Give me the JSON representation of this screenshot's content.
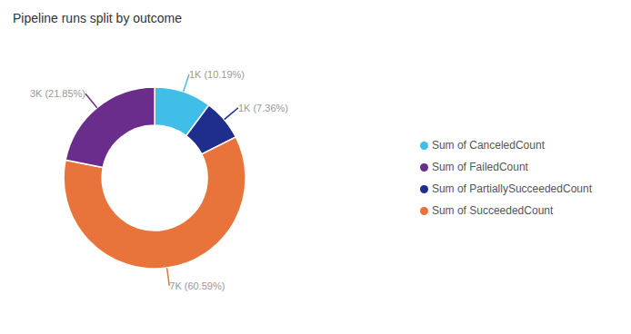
{
  "chart_data": {
    "type": "donut",
    "title": "Pipeline runs split by outcome",
    "categories": [
      "Sum of CanceledCount",
      "Sum of PartiallySucceededCount",
      "Sum of SucceededCount",
      "Sum of FailedCount"
    ],
    "values": [
      10.19,
      7.36,
      60.59,
      21.85
    ],
    "value_labels": [
      "1K (10.19%)",
      "1K (7.36%)",
      "7K (60.59%)",
      "3K (21.85%)"
    ],
    "colors": [
      "#41BEE8",
      "#1F2D8C",
      "#E8743B",
      "#6B2D8B"
    ],
    "data_labels": true,
    "legend": "right"
  }
}
